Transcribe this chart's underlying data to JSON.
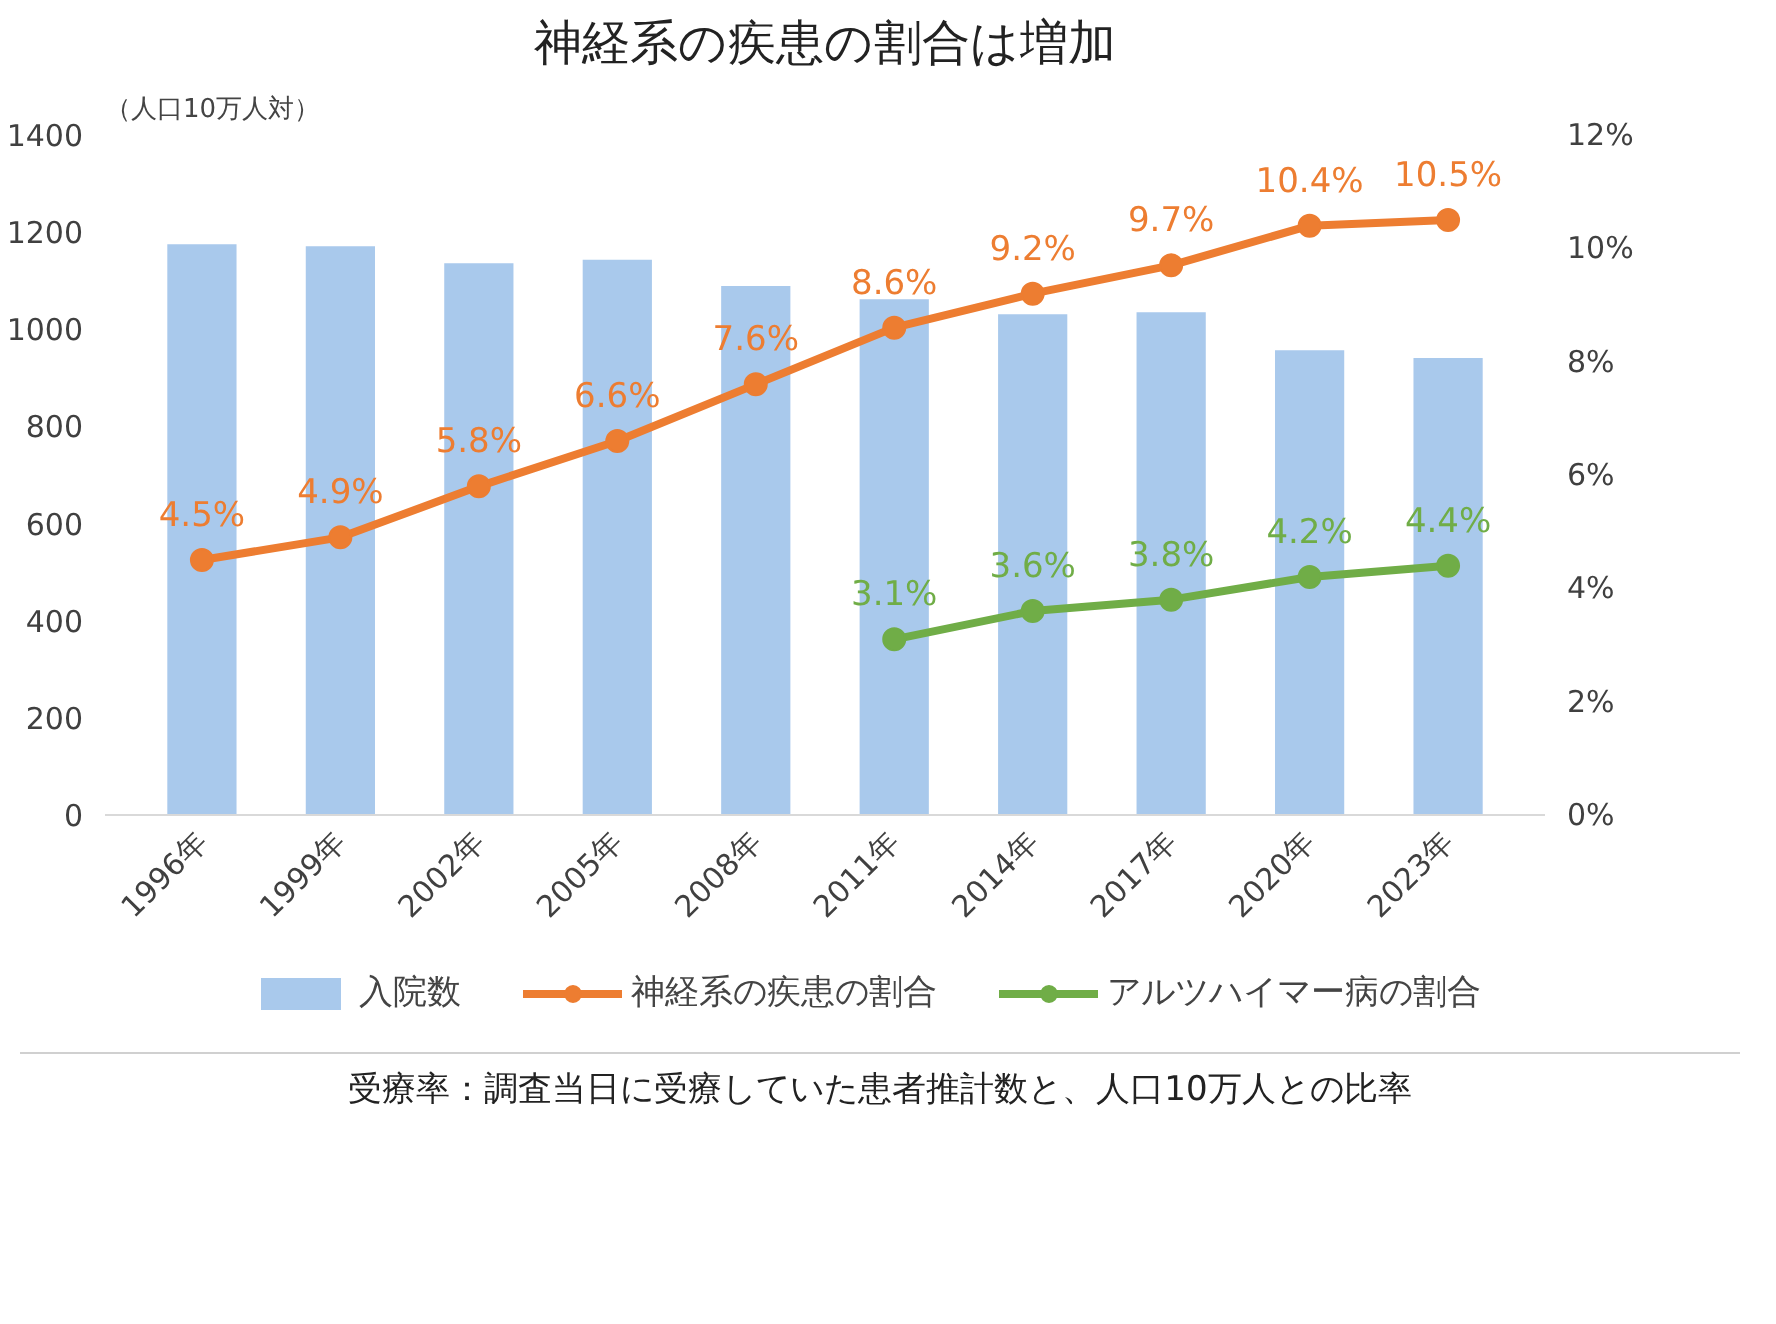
{
  "chart_data": {
    "type": "bar",
    "title": "神経系の疾患の割合は増加",
    "ylabel": "（人口10万人対）",
    "categories": [
      "1996年",
      "1999年",
      "2002年",
      "2005年",
      "2008年",
      "2011年",
      "2014年",
      "2017年",
      "2020年",
      "2023年"
    ],
    "series": [
      {
        "name": "入院数",
        "color": "#a9c9ec",
        "values": [
          1175,
          1171,
          1136,
          1143,
          1089,
          1062,
          1031,
          1035,
          957,
          941
        ]
      },
      {
        "name": "神経系の疾患の割合",
        "type": "line",
        "axis": "y2",
        "color": "#ed7d31",
        "marker": "circle",
        "values": [
          4.5,
          4.9,
          5.8,
          6.6,
          7.6,
          8.6,
          9.2,
          9.7,
          10.4,
          10.5
        ],
        "value_labels": [
          "4.5%",
          "4.9%",
          "5.8%",
          "6.6%",
          "7.6%",
          "8.6%",
          "9.2%",
          "9.7%",
          "10.4%",
          "10.5%"
        ]
      },
      {
        "name": "アルツハイマー病の割合",
        "type": "line",
        "axis": "y2",
        "color": "#70ad47",
        "marker": "circle",
        "values": [
          null,
          null,
          null,
          null,
          null,
          3.1,
          3.6,
          3.8,
          4.2,
          4.4
        ],
        "value_labels": [
          null,
          null,
          null,
          null,
          null,
          "3.1%",
          "3.6%",
          "3.8%",
          "4.2%",
          "4.4%"
        ]
      }
    ],
    "ylim": [
      0,
      1400
    ],
    "yticks": [
      0,
      200,
      400,
      600,
      800,
      1000,
      1200,
      1400
    ],
    "y2lim": [
      0,
      12
    ],
    "y2ticks": [
      {
        "value": 0,
        "label": "0%"
      },
      {
        "value": 2,
        "label": "2%"
      },
      {
        "value": 4,
        "label": "4%"
      },
      {
        "value": 6,
        "label": "6%"
      },
      {
        "value": 8,
        "label": "8%"
      },
      {
        "value": 10,
        "label": "10%"
      },
      {
        "value": 12,
        "label": "12%"
      }
    ],
    "grid": false,
    "legend": "bottom",
    "annotations": [
      "受療率：調査当日に受療していた患者推計数と、人口10万人との比率"
    ]
  }
}
